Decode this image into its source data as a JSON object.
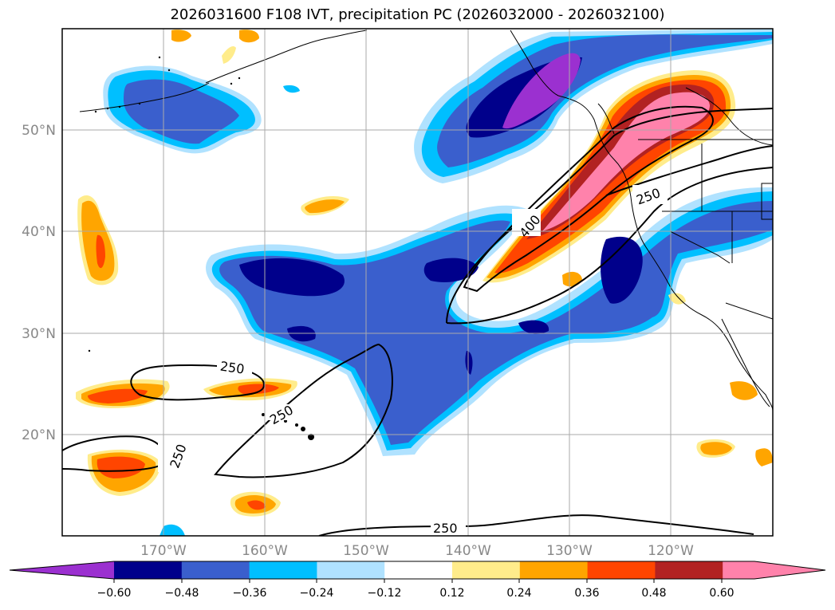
{
  "title": "2026031600 F108 IVT, precipitation PC (2026032000 - 2026032100)",
  "lat_labels": [
    "50°N",
    "40°N",
    "30°N",
    "20°N"
  ],
  "lon_labels": [
    "170°W",
    "160°W",
    "150°W",
    "140°W",
    "130°W",
    "120°W"
  ],
  "contour_labels": [
    "250",
    "250",
    "250",
    "250",
    "250",
    "400"
  ],
  "colorbar": {
    "ticks": [
      "−0.60",
      "−0.48",
      "−0.36",
      "−0.24",
      "−0.12",
      "0.12",
      "0.24",
      "0.36",
      "0.48",
      "0.60"
    ],
    "colors": [
      "#9b30d0",
      "#00008b",
      "#3a5fcd",
      "#00bfff",
      "#b0e2ff",
      "#ffffff",
      "#ffec8b",
      "#ffa500",
      "#ff4500",
      "#b22222",
      "#ff82ab"
    ]
  }
}
